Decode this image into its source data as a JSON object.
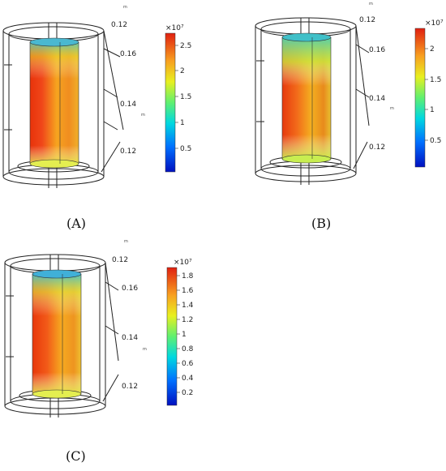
{
  "panels": [
    {
      "id": "A",
      "caption": "(A)",
      "axis_ticks": [
        "0.12",
        "0.16",
        "0.14",
        "0.12"
      ],
      "unit_label": "m",
      "colorbar": {
        "exponent": "×10⁷",
        "ticks": [
          "2.5",
          "2",
          "1.5",
          "1",
          "0.5"
        ],
        "min": 0.1,
        "max": 2.75
      }
    },
    {
      "id": "B",
      "caption": "(B)",
      "axis_ticks": [
        "0.12",
        "0.16",
        "0.14",
        "0.12"
      ],
      "unit_label": "m",
      "colorbar": {
        "exponent": "×10⁷",
        "ticks": [
          "2",
          "1.5",
          "1",
          "0.5"
        ],
        "min": 0.05,
        "max": 2.35
      }
    },
    {
      "id": "C",
      "caption": "(C)",
      "axis_ticks": [
        "0.12",
        "0.16",
        "0.14",
        "0.12"
      ],
      "unit_label": "m",
      "colorbar": {
        "exponent": "×10⁷",
        "ticks": [
          "1.8",
          "1.6",
          "1.4",
          "1.2",
          "1",
          "0.8",
          "0.6",
          "0.4",
          "0.2"
        ],
        "min": 0.05,
        "max": 1.95
      }
    }
  ],
  "colors": {
    "jet": [
      "#00008f",
      "#0040ff",
      "#00d0ff",
      "#40ff90",
      "#e0ff00",
      "#ffb000",
      "#ff3000",
      "#b00000"
    ]
  }
}
